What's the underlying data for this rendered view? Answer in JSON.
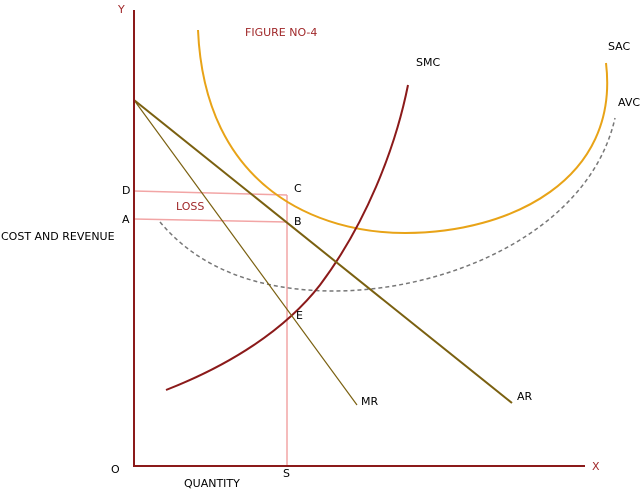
{
  "figure_title": "FIGURE NO-4",
  "axes": {
    "y_symbol": "Y",
    "x_symbol": "X",
    "origin": "O",
    "y_label": "COST AND REVENUE",
    "x_label": "QUANTITY"
  },
  "curves": {
    "smc": "SMC",
    "sac": "SAC",
    "avc": "AVC",
    "ar": "AR",
    "mr": "MR"
  },
  "points": {
    "d": "D",
    "a": "A",
    "c": "C",
    "b": "B",
    "e": "E",
    "s": "S"
  },
  "area_label": "LOSS"
}
